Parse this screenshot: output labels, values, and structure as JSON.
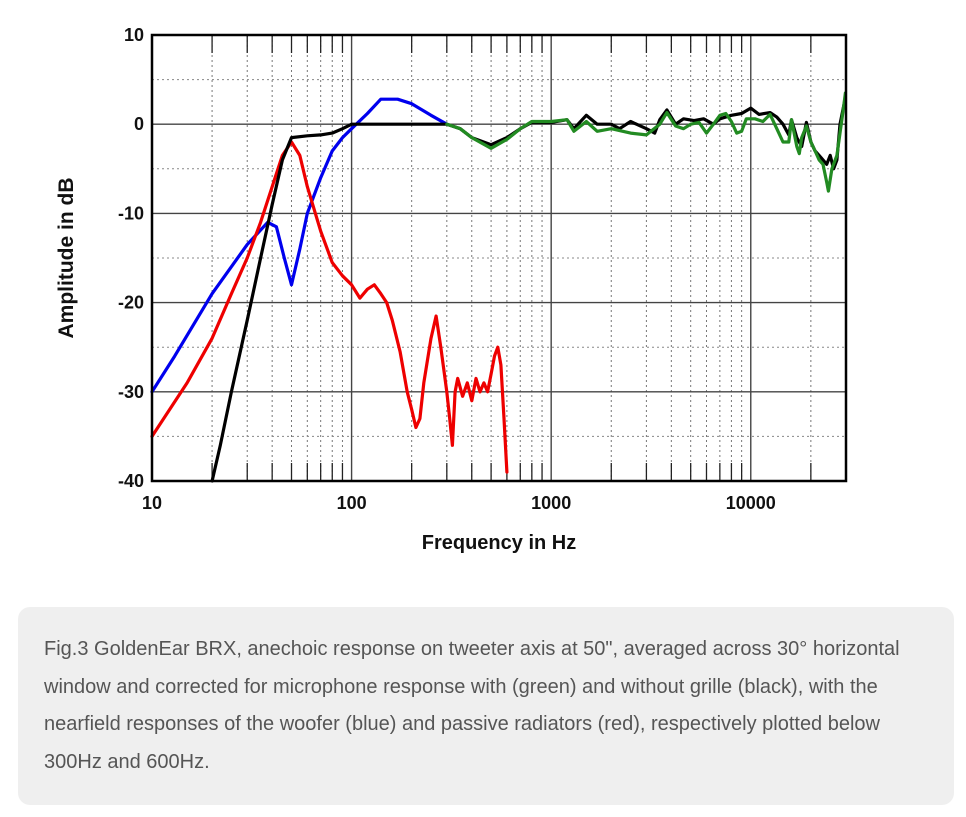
{
  "chart_data": {
    "type": "line",
    "title": "",
    "xlabel": "Frequency in Hz",
    "ylabel": "Amplitude in dB",
    "x_scale": "log",
    "xlim": [
      10,
      30000
    ],
    "ylim": [
      -40,
      10
    ],
    "x_ticks": [
      10,
      100,
      1000,
      10000
    ],
    "x_tick_labels": [
      "10",
      "100",
      "1000",
      "10000"
    ],
    "y_ticks": [
      -40,
      -30,
      -20,
      -10,
      0,
      10
    ],
    "y_tick_labels": [
      "-40",
      "-30",
      "-20",
      "-10",
      "0",
      "10"
    ],
    "grid": true,
    "legend": "none",
    "series": [
      {
        "color": "#0000ee",
        "points": [
          [
            10,
            -30
          ],
          [
            13,
            -26
          ],
          [
            20,
            -19
          ],
          [
            30,
            -13.5
          ],
          [
            38,
            -11
          ],
          [
            42,
            -11.5
          ],
          [
            46,
            -15
          ],
          [
            50,
            -18
          ],
          [
            55,
            -14
          ],
          [
            60,
            -10
          ],
          [
            70,
            -6
          ],
          [
            80,
            -3
          ],
          [
            90,
            -1.5
          ],
          [
            100,
            -0.5
          ],
          [
            120,
            1.2
          ],
          [
            140,
            2.8
          ],
          [
            170,
            2.8
          ],
          [
            200,
            2.3
          ],
          [
            250,
            1
          ],
          [
            300,
            0
          ]
        ]
      },
      {
        "color": "#ee0000",
        "points": [
          [
            10,
            -35
          ],
          [
            15,
            -29
          ],
          [
            20,
            -24
          ],
          [
            25,
            -19
          ],
          [
            30,
            -15
          ],
          [
            35,
            -11
          ],
          [
            40,
            -7
          ],
          [
            45,
            -3.5
          ],
          [
            50,
            -2
          ],
          [
            55,
            -3.5
          ],
          [
            60,
            -7
          ],
          [
            70,
            -12
          ],
          [
            80,
            -15.5
          ],
          [
            90,
            -17
          ],
          [
            100,
            -18
          ],
          [
            110,
            -19.5
          ],
          [
            120,
            -18.5
          ],
          [
            130,
            -18
          ],
          [
            140,
            -19
          ],
          [
            150,
            -20
          ],
          [
            160,
            -22
          ],
          [
            175,
            -25.5
          ],
          [
            190,
            -30
          ],
          [
            200,
            -32
          ],
          [
            210,
            -34
          ],
          [
            220,
            -33
          ],
          [
            230,
            -29
          ],
          [
            250,
            -24
          ],
          [
            265,
            -21.5
          ],
          [
            280,
            -25
          ],
          [
            300,
            -30
          ],
          [
            310,
            -33
          ],
          [
            320,
            -36
          ],
          [
            330,
            -30
          ],
          [
            340,
            -28.5
          ],
          [
            360,
            -30.5
          ],
          [
            380,
            -29
          ],
          [
            400,
            -31
          ],
          [
            420,
            -28.5
          ],
          [
            440,
            -30
          ],
          [
            460,
            -29
          ],
          [
            480,
            -30
          ],
          [
            500,
            -28
          ],
          [
            520,
            -26
          ],
          [
            540,
            -25
          ],
          [
            560,
            -27
          ],
          [
            580,
            -33
          ],
          [
            600,
            -39
          ]
        ]
      },
      {
        "color": "#000000",
        "points": [
          [
            20,
            -40
          ],
          [
            22,
            -36
          ],
          [
            25,
            -30
          ],
          [
            30,
            -22
          ],
          [
            35,
            -15
          ],
          [
            40,
            -9
          ],
          [
            45,
            -4
          ],
          [
            50,
            -1.5
          ],
          [
            60,
            -1.3
          ],
          [
            70,
            -1.2
          ],
          [
            80,
            -1
          ],
          [
            90,
            -0.5
          ],
          [
            100,
            0
          ],
          [
            300,
            0
          ],
          [
            350,
            -0.5
          ],
          [
            400,
            -1.5
          ],
          [
            500,
            -2.3
          ],
          [
            600,
            -1.5
          ],
          [
            700,
            -0.5
          ],
          [
            800,
            0.2
          ],
          [
            1000,
            0.2
          ],
          [
            1200,
            0.5
          ],
          [
            1300,
            -0.5
          ],
          [
            1500,
            1
          ],
          [
            1700,
            0
          ],
          [
            2000,
            0
          ],
          [
            2200,
            -0.5
          ],
          [
            2500,
            0.3
          ],
          [
            3000,
            -0.5
          ],
          [
            3300,
            -1
          ],
          [
            3500,
            0.5
          ],
          [
            3800,
            1.6
          ],
          [
            4200,
            0
          ],
          [
            4600,
            0.6
          ],
          [
            5200,
            0.4
          ],
          [
            5800,
            0.6
          ],
          [
            6500,
            0
          ],
          [
            7000,
            0.6
          ],
          [
            8000,
            1
          ],
          [
            9000,
            1.2
          ],
          [
            10000,
            1.8
          ],
          [
            11000,
            1.1
          ],
          [
            12500,
            1.3
          ],
          [
            13500,
            0.8
          ],
          [
            14500,
            0
          ],
          [
            15500,
            -1.2
          ],
          [
            16000,
            0.5
          ],
          [
            17000,
            -1.5
          ],
          [
            18000,
            -2.5
          ],
          [
            19000,
            0.2
          ],
          [
            20000,
            -2
          ],
          [
            21000,
            -3
          ],
          [
            22000,
            -3.5
          ],
          [
            23000,
            -4
          ],
          [
            24000,
            -4.5
          ],
          [
            25000,
            -3.5
          ],
          [
            26000,
            -5
          ],
          [
            27000,
            -4
          ],
          [
            28000,
            0
          ],
          [
            29500,
            2.5
          ]
        ]
      },
      {
        "color": "#228b22",
        "points": [
          [
            300,
            0
          ],
          [
            350,
            -0.5
          ],
          [
            400,
            -1.5
          ],
          [
            500,
            -2.7
          ],
          [
            600,
            -1.7
          ],
          [
            700,
            -0.5
          ],
          [
            800,
            0.3
          ],
          [
            1000,
            0.3
          ],
          [
            1200,
            0.5
          ],
          [
            1300,
            -0.8
          ],
          [
            1500,
            0.3
          ],
          [
            1700,
            -0.8
          ],
          [
            2000,
            -0.5
          ],
          [
            2500,
            -1
          ],
          [
            3000,
            -1.2
          ],
          [
            3500,
            0
          ],
          [
            3800,
            1.3
          ],
          [
            4200,
            -0.2
          ],
          [
            4600,
            -0.5
          ],
          [
            5000,
            0
          ],
          [
            5500,
            0.2
          ],
          [
            6000,
            -1
          ],
          [
            6500,
            0
          ],
          [
            7000,
            1
          ],
          [
            7500,
            1.2
          ],
          [
            8000,
            0.3
          ],
          [
            8500,
            -1
          ],
          [
            9000,
            -0.8
          ],
          [
            9500,
            0.6
          ],
          [
            10500,
            0.6
          ],
          [
            11500,
            0.3
          ],
          [
            12500,
            1.1
          ],
          [
            13500,
            -0.5
          ],
          [
            14500,
            -2
          ],
          [
            15500,
            -2
          ],
          [
            16000,
            0.5
          ],
          [
            17000,
            -2.5
          ],
          [
            17500,
            -3.3
          ],
          [
            18000,
            -1.5
          ],
          [
            19000,
            -0.2
          ],
          [
            20000,
            -2
          ],
          [
            21000,
            -3
          ],
          [
            22000,
            -4
          ],
          [
            23000,
            -4.5
          ],
          [
            24000,
            -6.5
          ],
          [
            24500,
            -7.5
          ],
          [
            25500,
            -5
          ],
          [
            26500,
            -4
          ],
          [
            27000,
            -3.5
          ],
          [
            28000,
            -1
          ],
          [
            29000,
            1.5
          ],
          [
            29800,
            3.5
          ]
        ]
      }
    ]
  },
  "caption": "Fig.3 GoldenEar BRX, anechoic response on tweeter axis at 50\", averaged across 30° horizontal window and corrected for microphone response with (green) and without grille (black), with the nearfield responses of the woofer (blue) and passive radiators (red), respectively plotted below 300Hz and 600Hz."
}
